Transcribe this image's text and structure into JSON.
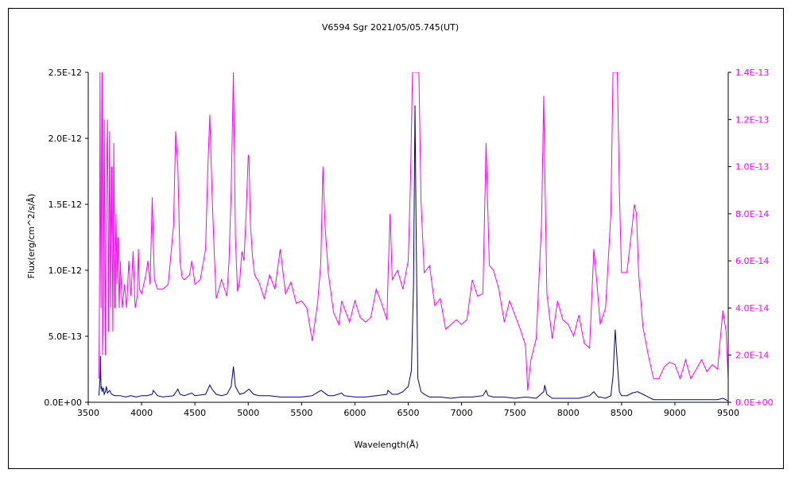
{
  "chart_data": {
    "type": "line",
    "title": "V6594 Sgr   2021/05/05.745(UT)",
    "xlabel": "Wavelength(Å)",
    "ylabel": "Flux(erg/cm^2/s/Å)",
    "xlim": [
      3500,
      9500
    ],
    "ylim": [
      0,
      2.5e-12
    ],
    "y2lim": [
      0,
      1.4e-13
    ],
    "x_ticks": [
      "3500",
      "4000",
      "4500",
      "5000",
      "5500",
      "6000",
      "6500",
      "7000",
      "7500",
      "8000",
      "8500",
      "9000",
      "9500"
    ],
    "y_ticks": [
      "0.0E+00",
      "5.0E-13",
      "1.0E-12",
      "1.5E-12",
      "2.0E-12",
      "2.5E-12"
    ],
    "y2_ticks": [
      "0.0E+00",
      "2.0E-14",
      "4.0E-14",
      "6.0E-14",
      "8.0E-14",
      "1.0E-13",
      "1.2E-13",
      "1.4E-13"
    ],
    "grid": false,
    "legend": "none",
    "series": [
      {
        "axis": "left",
        "color": "#000080",
        "x": [
          3600,
          3610,
          3615,
          3620,
          3625,
          3630,
          3640,
          3650,
          3660,
          3670,
          3680,
          3700,
          3720,
          3750,
          3800,
          3850,
          3900,
          3950,
          4000,
          4050,
          4100,
          4110,
          4150,
          4200,
          4300,
          4340,
          4360,
          4400,
          4471,
          4500,
          4600,
          4640,
          4660,
          4700,
          4750,
          4800,
          4840,
          4861,
          4880,
          4920,
          4960,
          5007,
          5050,
          5100,
          5200,
          5300,
          5400,
          5500,
          5600,
          5680,
          5700,
          5750,
          5800,
          5876,
          5900,
          6000,
          6100,
          6200,
          6300,
          6310,
          6350,
          6400,
          6450,
          6500,
          6530,
          6550,
          6563,
          6575,
          6590,
          6620,
          6650,
          6700,
          6800,
          6900,
          7000,
          7100,
          7200,
          7230,
          7250,
          7300,
          7400,
          7500,
          7600,
          7700,
          7770,
          7780,
          7800,
          7850,
          7900,
          8000,
          8100,
          8200,
          8240,
          8280,
          8300,
          8350,
          8400,
          8420,
          8440,
          8460,
          8480,
          8500,
          8550,
          8600,
          8650,
          8700,
          8750,
          8800,
          8900,
          9000,
          9100,
          9200,
          9300,
          9400,
          9450,
          9500
        ],
        "y": [
          5e-14,
          1.8e-13,
          3.5e-13,
          1e-13,
          1.2e-13,
          8e-14,
          1.1e-13,
          6e-14,
          8e-14,
          1.2e-13,
          7e-14,
          9e-14,
          6e-14,
          5e-14,
          5e-14,
          4e-14,
          5e-14,
          4e-14,
          5e-14,
          5e-14,
          6e-14,
          9e-14,
          5e-14,
          4e-14,
          5e-14,
          1e-13,
          6e-14,
          5e-14,
          7e-14,
          5e-14,
          6e-14,
          1.3e-13,
          1e-13,
          6e-14,
          5e-14,
          6e-14,
          1.2e-13,
          2.7e-13,
          1.2e-13,
          6e-14,
          7e-14,
          1e-13,
          6e-14,
          5e-14,
          5e-14,
          4e-14,
          4e-14,
          4e-14,
          5e-14,
          9e-14,
          8e-14,
          5e-14,
          5e-14,
          7e-14,
          5e-14,
          4e-14,
          4e-14,
          5e-14,
          6e-14,
          9e-14,
          6e-14,
          6e-14,
          8e-14,
          1.2e-13,
          2.4e-13,
          9e-13,
          2.25e-12,
          1.2e-12,
          1.8e-13,
          8e-14,
          6e-14,
          4e-14,
          4e-14,
          3e-14,
          4e-14,
          4e-14,
          5e-14,
          9e-14,
          5e-14,
          4e-14,
          4e-14,
          3e-14,
          4e-14,
          3e-14,
          8e-14,
          1.3e-13,
          6e-14,
          3e-14,
          3e-14,
          3e-14,
          3e-14,
          5e-14,
          8e-14,
          4e-14,
          4e-14,
          3e-14,
          5e-14,
          2e-13,
          5.5e-13,
          3e-13,
          8e-14,
          5e-14,
          5e-14,
          7e-14,
          8e-14,
          6e-14,
          4e-14,
          2e-14,
          2e-14,
          2e-14,
          2e-14,
          2e-14,
          2e-14,
          2e-14,
          3e-14,
          1e-14
        ]
      },
      {
        "axis": "right",
        "color": "#ff00ff",
        "x": [
          3600,
          3605,
          3610,
          3615,
          3620,
          3625,
          3630,
          3635,
          3640,
          3650,
          3660,
          3670,
          3680,
          3690,
          3700,
          3710,
          3720,
          3730,
          3740,
          3750,
          3760,
          3770,
          3780,
          3790,
          3800,
          3820,
          3840,
          3860,
          3880,
          3900,
          3920,
          3940,
          3960,
          3970,
          3980,
          4000,
          4020,
          4040,
          4060,
          4080,
          4100,
          4120,
          4150,
          4200,
          4250,
          4300,
          4320,
          4340,
          4360,
          4380,
          4400,
          4450,
          4471,
          4500,
          4550,
          4600,
          4620,
          4640,
          4660,
          4680,
          4700,
          4750,
          4800,
          4820,
          4840,
          4861,
          4880,
          4900,
          4920,
          4940,
          4960,
          4980,
          5000,
          5007,
          5020,
          5040,
          5060,
          5100,
          5150,
          5200,
          5250,
          5300,
          5350,
          5400,
          5450,
          5500,
          5550,
          5600,
          5650,
          5680,
          5700,
          5720,
          5750,
          5800,
          5850,
          5876,
          5900,
          5950,
          6000,
          6050,
          6100,
          6150,
          6200,
          6250,
          6300,
          6310,
          6330,
          6350,
          6400,
          6450,
          6500,
          6520,
          6540,
          6550,
          6563,
          6580,
          6600,
          6620,
          6650,
          6700,
          6750,
          6800,
          6850,
          6900,
          6950,
          7000,
          7050,
          7100,
          7150,
          7200,
          7230,
          7260,
          7300,
          7350,
          7400,
          7450,
          7500,
          7550,
          7600,
          7620,
          7650,
          7700,
          7750,
          7770,
          7780,
          7800,
          7850,
          7900,
          7950,
          8000,
          8050,
          8100,
          8150,
          8200,
          8240,
          8270,
          8300,
          8350,
          8400,
          8420,
          8440,
          8460,
          8480,
          8500,
          8550,
          8600,
          8620,
          8640,
          8660,
          8700,
          8750,
          8800,
          8850,
          8900,
          8950,
          9000,
          9050,
          9100,
          9150,
          9200,
          9250,
          9300,
          9350,
          9400,
          9450,
          9480,
          9500
        ],
        "y": [
          1e-14,
          4e-14,
          1.4e-13,
          8e-14,
          4e-14,
          1.1e-13,
          1.4e-13,
          2e-14,
          3e-14,
          1.2e-13,
          2e-14,
          9e-14,
          1.2e-13,
          3e-14,
          1.15e-13,
          4e-14,
          1e-13,
          3e-14,
          1.1e-13,
          4e-14,
          8e-14,
          5e-14,
          7e-14,
          4e-14,
          6e-14,
          4e-14,
          5e-14,
          4e-14,
          6e-14,
          4.5e-14,
          6.4e-14,
          4e-14,
          4.5e-14,
          6.5e-14,
          4.8e-14,
          4.6e-14,
          5e-14,
          5.4e-14,
          6e-14,
          5e-14,
          8.7e-14,
          5.2e-14,
          4.8e-14,
          4.8e-14,
          5e-14,
          7.5e-14,
          1.15e-13,
          1e-13,
          6e-14,
          5.3e-14,
          5.2e-14,
          5.4e-14,
          6e-14,
          5e-14,
          5.2e-14,
          6.5e-14,
          9.8e-14,
          1.22e-13,
          9e-14,
          6.5e-14,
          4.4e-14,
          5.2e-14,
          4.5e-14,
          6e-14,
          9e-14,
          1.4e-13,
          7e-14,
          4.7e-14,
          5.1e-14,
          6.4e-14,
          6e-14,
          8e-14,
          1.05e-13,
          1.04e-13,
          7.6e-14,
          6.2e-14,
          5.4e-14,
          5.1e-14,
          4.4e-14,
          5.4e-14,
          4.8e-14,
          6.5e-14,
          4.6e-14,
          5.1e-14,
          4.2e-14,
          4.3e-14,
          4e-14,
          2.6e-14,
          4.2e-14,
          5.9e-14,
          1e-13,
          7.5e-14,
          5.5e-14,
          3.8e-14,
          3.3e-14,
          4.3e-14,
          4e-14,
          3.4e-14,
          4.3e-14,
          3.6e-14,
          3.4e-14,
          3.6e-14,
          4.8e-14,
          4.2e-14,
          3.5e-14,
          5.2e-14,
          8e-14,
          5.2e-14,
          5.6e-14,
          4.8e-14,
          6e-14,
          9.2e-14,
          1.4e-13,
          1.4e-13,
          1.4e-13,
          1.4e-13,
          1.4e-13,
          8.5e-14,
          5.5e-14,
          5.8e-14,
          4.1e-14,
          4.4e-14,
          3.1e-14,
          3.3e-14,
          3.5e-14,
          3.3e-14,
          3.5e-14,
          5.2e-14,
          4.5e-14,
          4.6e-14,
          1.1e-13,
          5.8e-14,
          5.6e-14,
          4.8e-14,
          3.4e-14,
          4.3e-14,
          3.7e-14,
          3.1e-14,
          2.4e-14,
          5e-15,
          1.8e-14,
          2.7e-14,
          7.6e-14,
          1.3e-13,
          1e-13,
          4.6e-14,
          2.7e-14,
          4.3e-14,
          3.5e-14,
          3.3e-14,
          2.8e-14,
          3.7e-14,
          2.5e-14,
          2.3e-14,
          6.5e-14,
          5e-14,
          3.3e-14,
          4e-14,
          8e-14,
          1.4e-13,
          1.4e-13,
          1.4e-13,
          9e-14,
          5.5e-14,
          5.5e-14,
          7.5e-14,
          8.4e-14,
          8e-14,
          5.5e-14,
          3.2e-14,
          2e-14,
          1e-14,
          1e-14,
          1.5e-14,
          1.7e-14,
          1.6e-14,
          1e-14,
          1.8e-14,
          1e-14,
          1.4e-14,
          1.8e-14,
          1.3e-14,
          1.6e-14,
          1.4e-14,
          3.9e-14,
          3e-14,
          1e-14
        ]
      }
    ]
  }
}
